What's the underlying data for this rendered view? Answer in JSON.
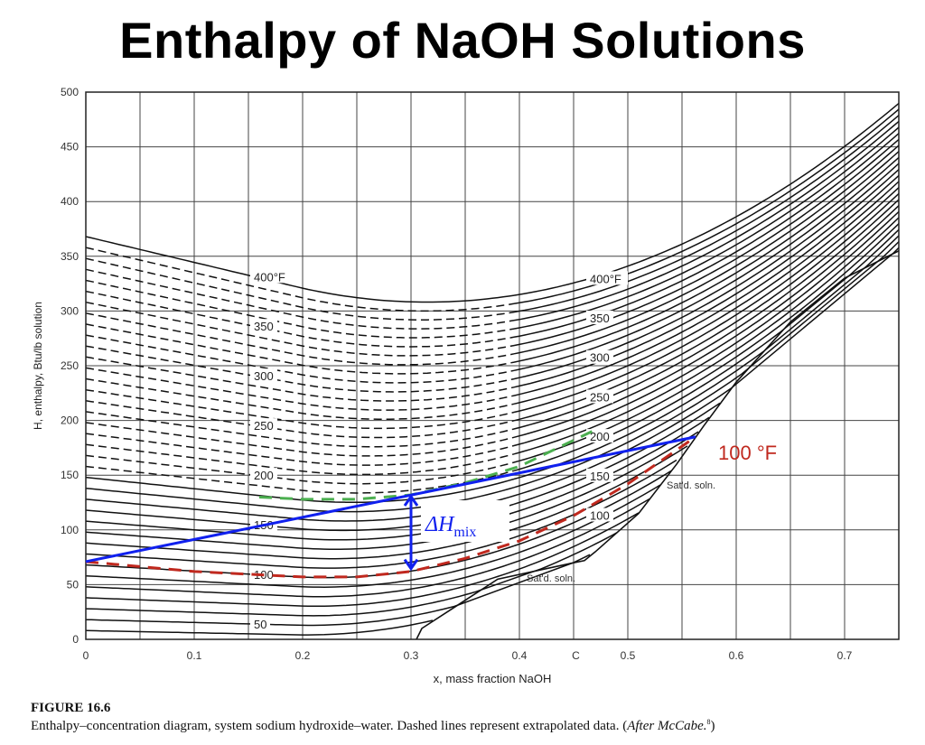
{
  "title": "Enthalpy of NaOH Solutions",
  "figure": {
    "label": "FIGURE 16.6",
    "caption": "Enthalpy–concentration diagram, system sodium hydroxide–water. Dashed lines represent extrapolated data. (",
    "caption_italic": "After McCabe.",
    "caption_sup": "8",
    "caption_end": ")"
  },
  "chart_data": {
    "type": "line",
    "title": "Enthalpy of NaOH Solutions",
    "xlabel": "x, mass fraction NaOH",
    "ylabel": "H, enthalpy, Btu/lb solution",
    "xlim": [
      0,
      0.75
    ],
    "ylim": [
      0,
      500
    ],
    "xticks": [
      {
        "value": 0,
        "label": "0"
      },
      {
        "value": 0.1,
        "label": "0.1"
      },
      {
        "value": 0.2,
        "label": "0.2"
      },
      {
        "value": 0.3,
        "label": "0.3"
      },
      {
        "value": 0.4,
        "label": "0.4"
      },
      {
        "value": 0.452,
        "label": "C"
      },
      {
        "value": 0.5,
        "label": "0.5"
      },
      {
        "value": 0.6,
        "label": "0.6"
      },
      {
        "value": 0.7,
        "label": "0.7"
      }
    ],
    "yticks": [
      0,
      50,
      100,
      150,
      200,
      250,
      300,
      350,
      400,
      450,
      500
    ],
    "grid": true,
    "isotherm_temps_F": [
      40,
      50,
      60,
      70,
      80,
      90,
      100,
      110,
      120,
      130,
      140,
      150,
      160,
      170,
      180,
      190,
      200,
      210,
      220,
      230,
      240,
      250,
      260,
      270,
      280,
      290,
      300,
      310,
      320,
      330,
      340,
      350,
      360,
      370,
      380,
      390,
      400
    ],
    "extrapolated_range_F": [
      190,
      390
    ],
    "isotherm_labels_left": [
      {
        "T": 50,
        "label": "50"
      },
      {
        "T": 100,
        "label": "100"
      },
      {
        "T": 150,
        "label": "150"
      },
      {
        "T": 200,
        "label": "200"
      },
      {
        "T": 250,
        "label": "250"
      },
      {
        "T": 300,
        "label": "300"
      },
      {
        "T": 350,
        "label": "350"
      },
      {
        "T": 400,
        "label": "400°F"
      }
    ],
    "isotherm_labels_right": [
      {
        "T": 100,
        "label": "100"
      },
      {
        "T": 150,
        "label": "150"
      },
      {
        "T": 200,
        "label": "200"
      },
      {
        "T": 250,
        "label": "250"
      },
      {
        "T": 300,
        "label": "300"
      },
      {
        "T": 350,
        "label": "350"
      },
      {
        "T": 400,
        "label": "400°F"
      }
    ],
    "saturation_curve": [
      [
        0.305,
        0
      ],
      [
        0.31,
        10
      ],
      [
        0.38,
        55
      ],
      [
        0.45,
        70
      ],
      [
        0.46,
        72
      ],
      [
        0.47,
        80
      ],
      [
        0.51,
        115
      ],
      [
        0.545,
        160
      ],
      [
        0.57,
        195
      ],
      [
        0.6,
        235
      ],
      [
        0.65,
        290
      ],
      [
        0.7,
        330
      ],
      [
        0.75,
        355
      ]
    ],
    "saturation_labels": [
      "Sat'd. soln.",
      "Sat'd. soln."
    ],
    "overlays": {
      "tie_line": {
        "color": "#1020ee",
        "points": [
          [
            0,
            71
          ],
          [
            0.5625,
            185
          ]
        ]
      },
      "isotherm_100F": {
        "color": "#c0281e",
        "label": "100 °F",
        "points": [
          [
            0,
            71
          ],
          [
            0.1,
            62
          ],
          [
            0.2,
            57
          ],
          [
            0.25,
            57
          ],
          [
            0.3,
            62
          ],
          [
            0.35,
            74
          ],
          [
            0.4,
            90
          ],
          [
            0.45,
            113
          ],
          [
            0.5,
            142
          ],
          [
            0.5625,
            185
          ]
        ]
      },
      "green_curve": {
        "color": "#4caf50",
        "points": [
          [
            0.16,
            130
          ],
          [
            0.2,
            128
          ],
          [
            0.25,
            128
          ],
          [
            0.3,
            132
          ],
          [
            0.35,
            143
          ],
          [
            0.4,
            158
          ],
          [
            0.467,
            190
          ]
        ]
      },
      "delta_h_mix": {
        "color": "#1020ee",
        "x": 0.3,
        "from": 132,
        "to": 63,
        "label_main": "ΔH",
        "label_sub": "mix"
      }
    }
  }
}
